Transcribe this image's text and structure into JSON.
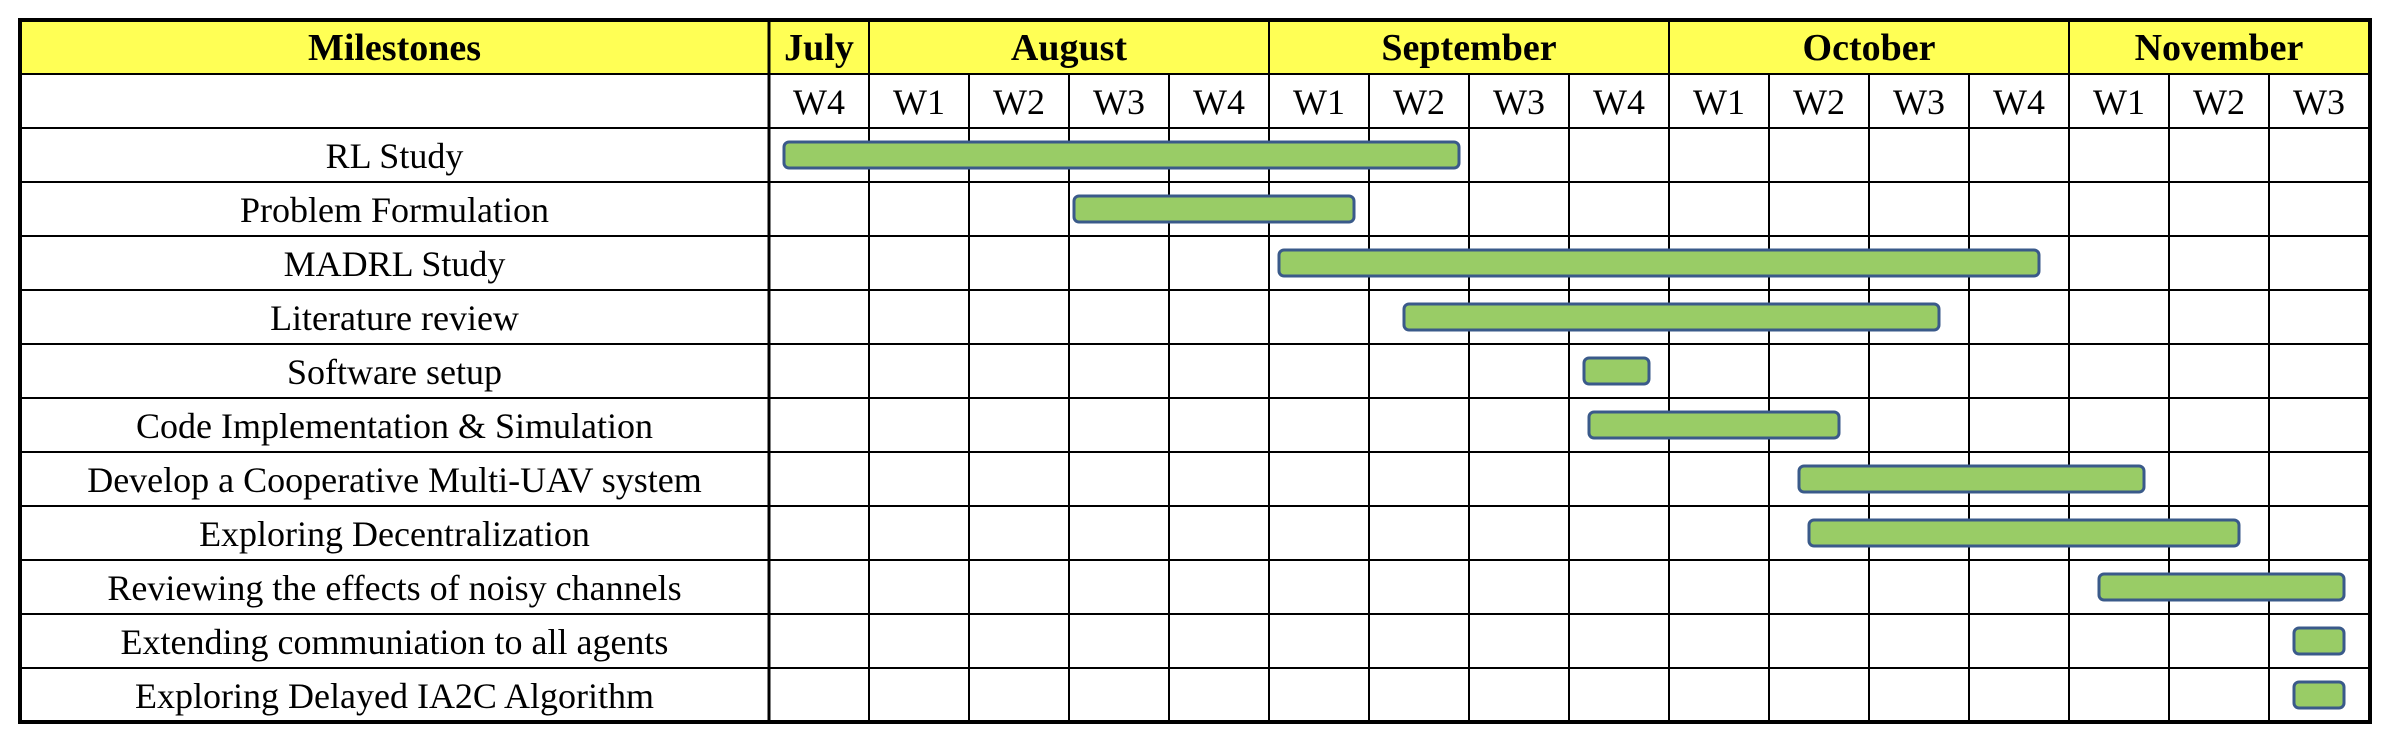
{
  "header": {
    "milestones_label": "Milestones",
    "months": [
      {
        "label": "July",
        "weeks": 1
      },
      {
        "label": "August",
        "weeks": 4
      },
      {
        "label": "September",
        "weeks": 4
      },
      {
        "label": "October",
        "weeks": 4
      },
      {
        "label": "November",
        "weeks": 3
      }
    ],
    "weeks": [
      "W4",
      "W1",
      "W2",
      "W3",
      "W4",
      "W1",
      "W2",
      "W3",
      "W4",
      "W1",
      "W2",
      "W3",
      "W4",
      "W1",
      "W2",
      "W3"
    ]
  },
  "colors": {
    "header_bg": "#ffff55",
    "bar_fill": "#99cc66",
    "bar_stroke": "#3a5a8a",
    "grid": "#000000"
  },
  "milestones": [
    {
      "label": "RL Study",
      "start": 0.15,
      "end": 6.9
    },
    {
      "label": "Problem Formulation",
      "start": 3.05,
      "end": 5.85
    },
    {
      "label": "MADRL Study",
      "start": 5.1,
      "end": 12.7
    },
    {
      "label": "Literature review",
      "start": 6.35,
      "end": 11.7
    },
    {
      "label": "Software setup",
      "start": 8.15,
      "end": 8.8
    },
    {
      "label": "Code Implementation & Simulation",
      "start": 8.2,
      "end": 10.7
    },
    {
      "label": "Develop a Cooperative Multi-UAV system",
      "start": 10.3,
      "end": 13.75
    },
    {
      "label": "Exploring Decentralization",
      "start": 10.4,
      "end": 14.7
    },
    {
      "label": "Reviewing the effects of noisy channels",
      "start": 13.3,
      "end": 15.75
    },
    {
      "label": "Extending communiation to all agents",
      "start": 15.25,
      "end": 15.75
    },
    {
      "label": "Exploring Delayed IA2C Algorithm",
      "start": 15.25,
      "end": 15.75
    }
  ]
}
